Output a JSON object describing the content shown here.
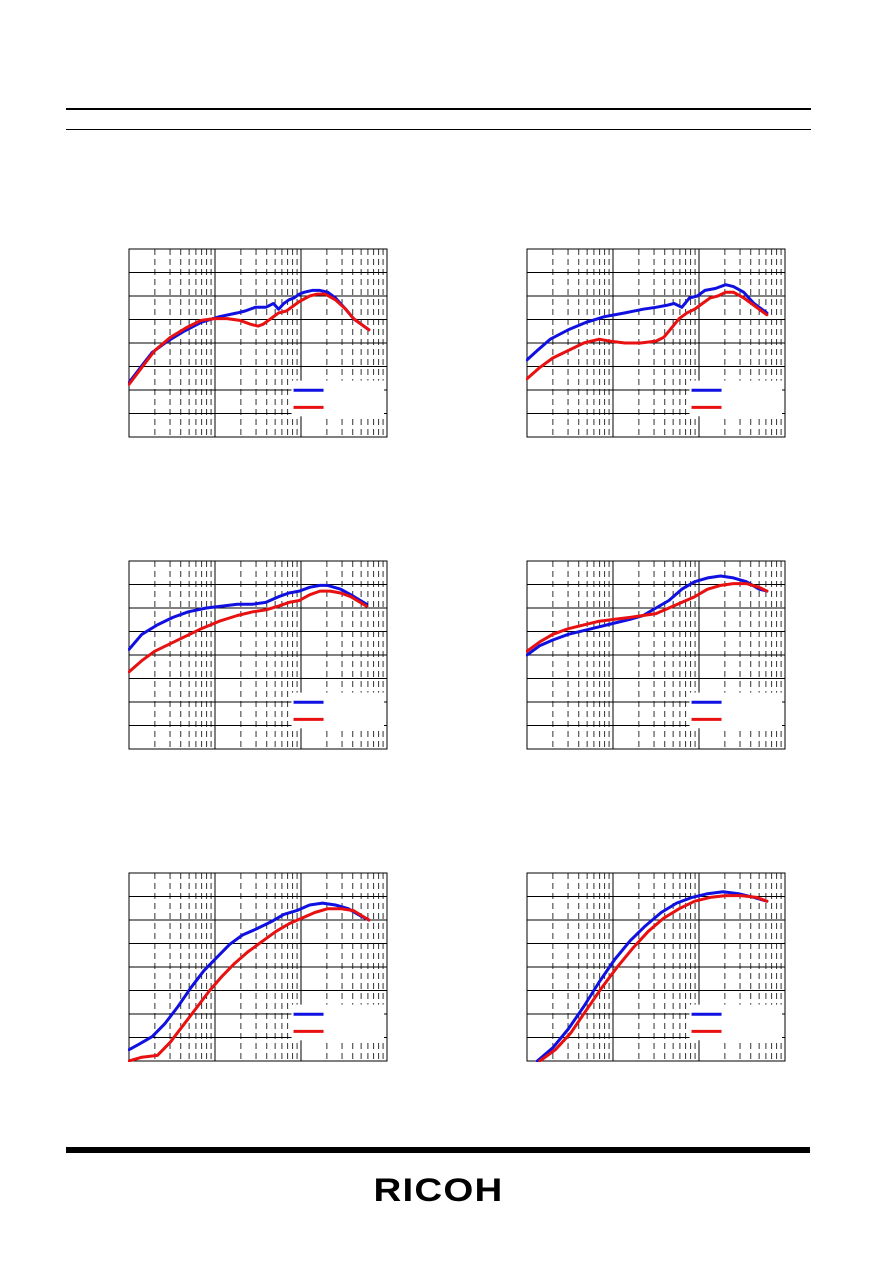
{
  "brand": {
    "logo_text": "RICOH"
  },
  "colors": {
    "series_1": "#1010e0",
    "series_2": "#e81010",
    "grid": "#000000"
  },
  "chart_data": [
    {
      "type": "line",
      "x_scale": "log",
      "y_grid_lines": 8,
      "legend": "bottom-right",
      "series": [
        {
          "color": "#1010e0",
          "points": [
            [
              0.0,
              0.29
            ],
            [
              0.05,
              0.38
            ],
            [
              0.09,
              0.45
            ],
            [
              0.15,
              0.51
            ],
            [
              0.21,
              0.56
            ],
            [
              0.28,
              0.61
            ],
            [
              0.35,
              0.64
            ],
            [
              0.42,
              0.66
            ],
            [
              0.45,
              0.67
            ],
            [
              0.49,
              0.69
            ],
            [
              0.53,
              0.69
            ],
            [
              0.56,
              0.71
            ],
            [
              0.58,
              0.68
            ],
            [
              0.6,
              0.71
            ],
            [
              0.62,
              0.73
            ],
            [
              0.64,
              0.74
            ],
            [
              0.66,
              0.76
            ],
            [
              0.68,
              0.77
            ],
            [
              0.71,
              0.78
            ],
            [
              0.74,
              0.78
            ],
            [
              0.77,
              0.77
            ],
            [
              0.8,
              0.74
            ],
            [
              0.84,
              0.68
            ],
            [
              0.87,
              0.63
            ],
            [
              0.93,
              0.57
            ]
          ]
        },
        {
          "color": "#e81010",
          "points": [
            [
              0.0,
              0.28
            ],
            [
              0.05,
              0.37
            ],
            [
              0.1,
              0.46
            ],
            [
              0.16,
              0.53
            ],
            [
              0.22,
              0.58
            ],
            [
              0.28,
              0.62
            ],
            [
              0.33,
              0.63
            ],
            [
              0.38,
              0.63
            ],
            [
              0.43,
              0.62
            ],
            [
              0.47,
              0.6
            ],
            [
              0.5,
              0.59
            ],
            [
              0.52,
              0.6
            ],
            [
              0.55,
              0.63
            ],
            [
              0.58,
              0.66
            ],
            [
              0.61,
              0.67
            ],
            [
              0.64,
              0.7
            ],
            [
              0.66,
              0.72
            ],
            [
              0.7,
              0.75
            ],
            [
              0.73,
              0.76
            ],
            [
              0.76,
              0.76
            ],
            [
              0.8,
              0.73
            ],
            [
              0.84,
              0.68
            ],
            [
              0.87,
              0.63
            ],
            [
              0.93,
              0.57
            ]
          ]
        }
      ]
    },
    {
      "type": "line",
      "x_scale": "log",
      "y_grid_lines": 8,
      "legend": "bottom-right",
      "series": [
        {
          "color": "#1010e0",
          "points": [
            [
              0.0,
              0.41
            ],
            [
              0.04,
              0.46
            ],
            [
              0.09,
              0.52
            ],
            [
              0.16,
              0.57
            ],
            [
              0.23,
              0.61
            ],
            [
              0.3,
              0.64
            ],
            [
              0.38,
              0.66
            ],
            [
              0.45,
              0.68
            ],
            [
              0.5,
              0.69
            ],
            [
              0.54,
              0.7
            ],
            [
              0.57,
              0.71
            ],
            [
              0.6,
              0.69
            ],
            [
              0.63,
              0.74
            ],
            [
              0.66,
              0.75
            ],
            [
              0.69,
              0.78
            ],
            [
              0.73,
              0.79
            ],
            [
              0.77,
              0.81
            ],
            [
              0.8,
              0.8
            ],
            [
              0.84,
              0.77
            ],
            [
              0.88,
              0.71
            ],
            [
              0.93,
              0.66
            ]
          ]
        },
        {
          "color": "#e81010",
          "points": [
            [
              0.0,
              0.31
            ],
            [
              0.05,
              0.37
            ],
            [
              0.1,
              0.42
            ],
            [
              0.16,
              0.46
            ],
            [
              0.22,
              0.5
            ],
            [
              0.28,
              0.52
            ],
            [
              0.32,
              0.51
            ],
            [
              0.38,
              0.5
            ],
            [
              0.44,
              0.5
            ],
            [
              0.5,
              0.51
            ],
            [
              0.53,
              0.53
            ],
            [
              0.56,
              0.58
            ],
            [
              0.59,
              0.63
            ],
            [
              0.62,
              0.66
            ],
            [
              0.65,
              0.68
            ],
            [
              0.68,
              0.71
            ],
            [
              0.71,
              0.74
            ],
            [
              0.74,
              0.75
            ],
            [
              0.77,
              0.77
            ],
            [
              0.8,
              0.77
            ],
            [
              0.84,
              0.74
            ],
            [
              0.88,
              0.7
            ],
            [
              0.93,
              0.65
            ]
          ]
        }
      ]
    },
    {
      "type": "line",
      "x_scale": "log",
      "y_grid_lines": 8,
      "legend": "bottom-right",
      "series": [
        {
          "color": "#1010e0",
          "points": [
            [
              0.0,
              0.53
            ],
            [
              0.05,
              0.61
            ],
            [
              0.11,
              0.66
            ],
            [
              0.17,
              0.7
            ],
            [
              0.23,
              0.73
            ],
            [
              0.3,
              0.75
            ],
            [
              0.36,
              0.76
            ],
            [
              0.42,
              0.77
            ],
            [
              0.48,
              0.77
            ],
            [
              0.53,
              0.78
            ],
            [
              0.58,
              0.81
            ],
            [
              0.62,
              0.83
            ],
            [
              0.66,
              0.84
            ],
            [
              0.7,
              0.86
            ],
            [
              0.74,
              0.87
            ],
            [
              0.77,
              0.87
            ],
            [
              0.82,
              0.85
            ],
            [
              0.86,
              0.82
            ],
            [
              0.92,
              0.77
            ]
          ]
        },
        {
          "color": "#e81010",
          "points": [
            [
              0.0,
              0.41
            ],
            [
              0.05,
              0.47
            ],
            [
              0.1,
              0.52
            ],
            [
              0.16,
              0.56
            ],
            [
              0.22,
              0.6
            ],
            [
              0.28,
              0.64
            ],
            [
              0.35,
              0.68
            ],
            [
              0.42,
              0.71
            ],
            [
              0.48,
              0.73
            ],
            [
              0.53,
              0.74
            ],
            [
              0.58,
              0.76
            ],
            [
              0.62,
              0.78
            ],
            [
              0.66,
              0.79
            ],
            [
              0.7,
              0.82
            ],
            [
              0.74,
              0.84
            ],
            [
              0.78,
              0.84
            ],
            [
              0.82,
              0.83
            ],
            [
              0.86,
              0.81
            ],
            [
              0.92,
              0.76
            ]
          ]
        }
      ]
    },
    {
      "type": "line",
      "x_scale": "log",
      "y_grid_lines": 8,
      "legend": "bottom-right",
      "series": [
        {
          "color": "#1010e0",
          "points": [
            [
              0.0,
              0.5
            ],
            [
              0.05,
              0.55
            ],
            [
              0.1,
              0.58
            ],
            [
              0.16,
              0.61
            ],
            [
              0.22,
              0.63
            ],
            [
              0.28,
              0.65
            ],
            [
              0.34,
              0.67
            ],
            [
              0.4,
              0.69
            ],
            [
              0.45,
              0.71
            ],
            [
              0.5,
              0.75
            ],
            [
              0.55,
              0.79
            ],
            [
              0.6,
              0.85
            ],
            [
              0.65,
              0.89
            ],
            [
              0.7,
              0.91
            ],
            [
              0.75,
              0.92
            ],
            [
              0.8,
              0.91
            ],
            [
              0.85,
              0.89
            ],
            [
              0.9,
              0.85
            ],
            [
              0.93,
              0.84
            ]
          ]
        },
        {
          "color": "#e81010",
          "points": [
            [
              0.0,
              0.52
            ],
            [
              0.05,
              0.57
            ],
            [
              0.1,
              0.61
            ],
            [
              0.16,
              0.64
            ],
            [
              0.22,
              0.66
            ],
            [
              0.28,
              0.68
            ],
            [
              0.34,
              0.69
            ],
            [
              0.4,
              0.7
            ],
            [
              0.45,
              0.71
            ],
            [
              0.5,
              0.72
            ],
            [
              0.55,
              0.75
            ],
            [
              0.6,
              0.78
            ],
            [
              0.65,
              0.81
            ],
            [
              0.7,
              0.85
            ],
            [
              0.75,
              0.87
            ],
            [
              0.8,
              0.88
            ],
            [
              0.85,
              0.88
            ],
            [
              0.9,
              0.86
            ],
            [
              0.93,
              0.84
            ]
          ]
        }
      ]
    },
    {
      "type": "line",
      "x_scale": "log",
      "y_grid_lines": 8,
      "legend": "bottom-right",
      "series": [
        {
          "color": "#1010e0",
          "points": [
            [
              0.0,
              0.06
            ],
            [
              0.04,
              0.09
            ],
            [
              0.09,
              0.13
            ],
            [
              0.14,
              0.2
            ],
            [
              0.19,
              0.29
            ],
            [
              0.24,
              0.39
            ],
            [
              0.29,
              0.48
            ],
            [
              0.34,
              0.55
            ],
            [
              0.39,
              0.62
            ],
            [
              0.44,
              0.67
            ],
            [
              0.49,
              0.7
            ],
            [
              0.55,
              0.74
            ],
            [
              0.6,
              0.78
            ],
            [
              0.65,
              0.8
            ],
            [
              0.7,
              0.83
            ],
            [
              0.75,
              0.84
            ],
            [
              0.8,
              0.83
            ],
            [
              0.85,
              0.81
            ],
            [
              0.9,
              0.77
            ],
            [
              0.93,
              0.75
            ]
          ]
        },
        {
          "color": "#e81010",
          "points": [
            [
              0.0,
              0.0
            ],
            [
              0.05,
              0.02
            ],
            [
              0.11,
              0.03
            ],
            [
              0.16,
              0.1
            ],
            [
              0.21,
              0.19
            ],
            [
              0.26,
              0.28
            ],
            [
              0.31,
              0.37
            ],
            [
              0.36,
              0.45
            ],
            [
              0.41,
              0.52
            ],
            [
              0.46,
              0.58
            ],
            [
              0.52,
              0.64
            ],
            [
              0.57,
              0.69
            ],
            [
              0.62,
              0.73
            ],
            [
              0.67,
              0.76
            ],
            [
              0.72,
              0.79
            ],
            [
              0.77,
              0.81
            ],
            [
              0.82,
              0.81
            ],
            [
              0.87,
              0.8
            ],
            [
              0.93,
              0.75
            ]
          ]
        }
      ]
    },
    {
      "type": "line",
      "x_scale": "log",
      "y_grid_lines": 8,
      "legend": "bottom-right",
      "series": [
        {
          "color": "#1010e0",
          "points": [
            [
              0.04,
              0.0
            ],
            [
              0.1,
              0.07
            ],
            [
              0.16,
              0.17
            ],
            [
              0.22,
              0.29
            ],
            [
              0.28,
              0.42
            ],
            [
              0.34,
              0.54
            ],
            [
              0.4,
              0.64
            ],
            [
              0.46,
              0.72
            ],
            [
              0.52,
              0.79
            ],
            [
              0.58,
              0.84
            ],
            [
              0.64,
              0.87
            ],
            [
              0.7,
              0.89
            ],
            [
              0.76,
              0.9
            ],
            [
              0.82,
              0.89
            ],
            [
              0.88,
              0.87
            ],
            [
              0.93,
              0.85
            ]
          ]
        },
        {
          "color": "#e81010",
          "points": [
            [
              0.05,
              0.0
            ],
            [
              0.11,
              0.06
            ],
            [
              0.17,
              0.15
            ],
            [
              0.23,
              0.27
            ],
            [
              0.29,
              0.39
            ],
            [
              0.35,
              0.5
            ],
            [
              0.41,
              0.6
            ],
            [
              0.47,
              0.69
            ],
            [
              0.53,
              0.76
            ],
            [
              0.59,
              0.81
            ],
            [
              0.65,
              0.85
            ],
            [
              0.71,
              0.87
            ],
            [
              0.77,
              0.88
            ],
            [
              0.83,
              0.88
            ],
            [
              0.89,
              0.87
            ],
            [
              0.93,
              0.85
            ]
          ]
        }
      ]
    }
  ]
}
